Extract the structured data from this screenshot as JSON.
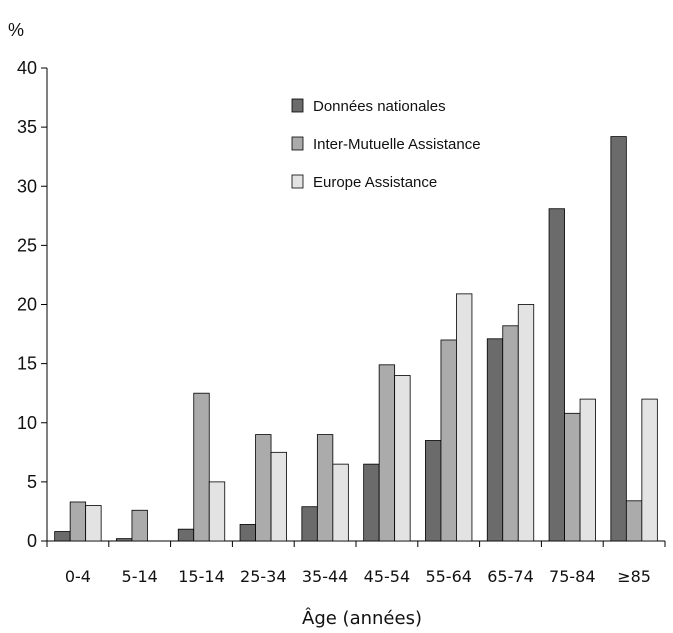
{
  "chart_data": {
    "type": "bar",
    "unit_label": "%",
    "xlabel": "Âge (années)",
    "ylim": [
      0,
      40
    ],
    "yticks": [
      0,
      5,
      10,
      15,
      20,
      25,
      30,
      35,
      40
    ],
    "grid": false,
    "legend_position": "top-right",
    "categories": [
      "0-4",
      "5-14",
      "15-14",
      "25-34",
      "35-44",
      "45-54",
      "55-64",
      "65-74",
      "75-84",
      "≥85"
    ],
    "series": [
      {
        "name": "Données nationales",
        "color": "#6b6b6b",
        "values": [
          0.8,
          0.2,
          1.0,
          1.4,
          2.9,
          6.5,
          8.5,
          17.1,
          28.1,
          34.2
        ]
      },
      {
        "name": "Inter-Mutuelle Assistance",
        "color": "#ababab",
        "values": [
          3.3,
          2.6,
          12.5,
          9.0,
          9.0,
          14.9,
          17.0,
          18.2,
          10.8,
          3.4
        ]
      },
      {
        "name": "Europe Assistance",
        "color": "#e3e3e3",
        "values": [
          3.0,
          0,
          5.0,
          7.5,
          6.5,
          14.0,
          20.9,
          20.0,
          12.0,
          12.0
        ]
      }
    ]
  }
}
